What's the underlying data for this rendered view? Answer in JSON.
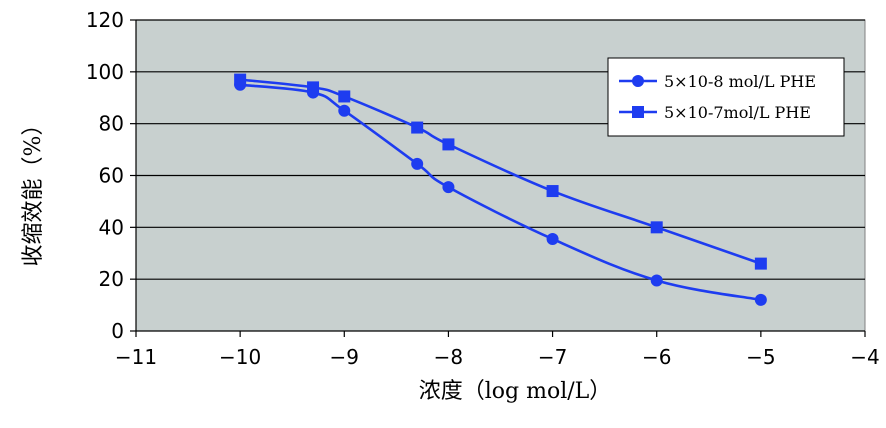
{
  "chart_data": {
    "type": "line",
    "xlabel": "浓度（log mol/L）",
    "ylabel": "收缩效能（%）",
    "xlim": [
      -11,
      -4
    ],
    "ylim": [
      0,
      120
    ],
    "x_ticks": [
      -11,
      -10,
      -9,
      -8,
      -7,
      -6,
      -5,
      -4
    ],
    "x_tick_labels": [
      "−11",
      "−10",
      "−9",
      "−8",
      "−7",
      "−6",
      "−5",
      "−4"
    ],
    "y_ticks": [
      0,
      20,
      40,
      60,
      80,
      100,
      120
    ],
    "y_tick_labels": [
      "0",
      "20",
      "40",
      "60",
      "80",
      "100",
      "120"
    ],
    "grid": "horizontal",
    "plot_background": "#c8d0cf",
    "series_color": "#1e3cf0",
    "legend_position": "top-right",
    "series": [
      {
        "name": "5×10-8 mol/L PHE",
        "marker": "circle",
        "x": [
          -10,
          -9.3,
          -9,
          -8.3,
          -8,
          -7,
          -6,
          -5
        ],
        "values": [
          95,
          92,
          85,
          64.5,
          55.5,
          35.5,
          19.5,
          12
        ]
      },
      {
        "name": "5×10-7mol/L PHE",
        "marker": "square",
        "x": [
          -10,
          -9.3,
          -9,
          -8.3,
          -8,
          -7,
          -6,
          -5
        ],
        "values": [
          97,
          94,
          90.5,
          78.5,
          72,
          54,
          40,
          26
        ]
      }
    ]
  }
}
